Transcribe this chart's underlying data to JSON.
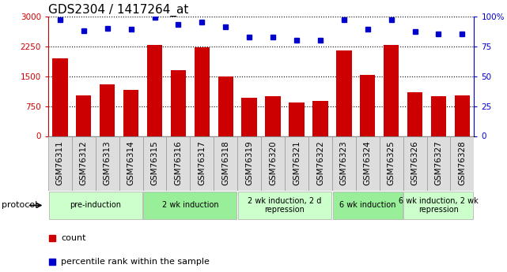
{
  "title": "GDS2304 / 1417264_at",
  "samples": [
    "GSM76311",
    "GSM76312",
    "GSM76313",
    "GSM76314",
    "GSM76315",
    "GSM76316",
    "GSM76317",
    "GSM76318",
    "GSM76319",
    "GSM76320",
    "GSM76321",
    "GSM76322",
    "GSM76323",
    "GSM76324",
    "GSM76325",
    "GSM76326",
    "GSM76327",
    "GSM76328"
  ],
  "counts": [
    1950,
    1020,
    1300,
    1150,
    2280,
    1650,
    2220,
    1490,
    950,
    1000,
    840,
    870,
    2150,
    1530,
    2280,
    1100,
    1000,
    1020
  ],
  "percentiles": [
    97,
    88,
    90,
    89,
    99,
    93,
    95,
    91,
    83,
    83,
    80,
    80,
    97,
    89,
    97,
    87,
    85,
    85
  ],
  "ylim_left": [
    0,
    3000
  ],
  "ylim_right": [
    0,
    100
  ],
  "yticks_left": [
    0,
    750,
    1500,
    2250,
    3000
  ],
  "yticks_right": [
    0,
    25,
    50,
    75,
    100
  ],
  "bar_color": "#cc0000",
  "dot_color": "#0000cc",
  "protocols": [
    {
      "label": "pre-induction",
      "start": 0,
      "end": 4,
      "color": "#ccffcc"
    },
    {
      "label": "2 wk induction",
      "start": 4,
      "end": 8,
      "color": "#99ee99"
    },
    {
      "label": "2 wk induction, 2 d\nrepression",
      "start": 8,
      "end": 12,
      "color": "#ccffcc"
    },
    {
      "label": "6 wk induction",
      "start": 12,
      "end": 15,
      "color": "#99ee99"
    },
    {
      "label": "6 wk induction, 2 wk\nrepression",
      "start": 15,
      "end": 18,
      "color": "#ccffcc"
    }
  ],
  "legend_items": [
    {
      "label": "count",
      "color": "#cc0000"
    },
    {
      "label": "percentile rank within the sample",
      "color": "#0000cc"
    }
  ],
  "protocol_label": "protocol",
  "title_fontsize": 11,
  "tick_fontsize": 7.5,
  "proto_fontsize": 7,
  "legend_fontsize": 8
}
